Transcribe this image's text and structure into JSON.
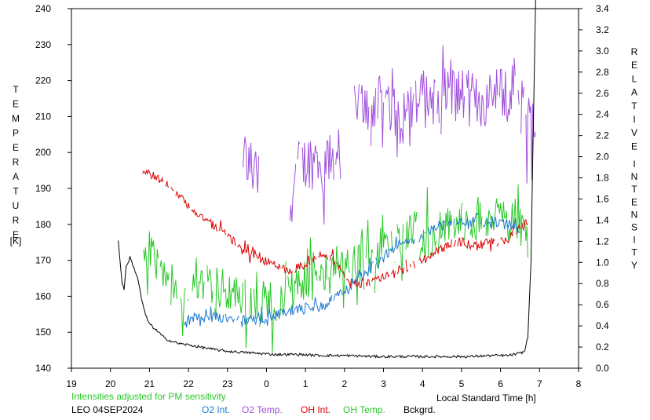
{
  "chart_data": {
    "type": "line",
    "x_axis": {
      "label": "Local Standard Time [h]",
      "ticks": [
        "19",
        "20",
        "21",
        "22",
        "23",
        "0",
        "1",
        "2",
        "3",
        "4",
        "5",
        "6",
        "7",
        "8"
      ],
      "range": [
        19,
        32
      ]
    },
    "y_left": {
      "label_letters": [
        "T",
        "E",
        "M",
        "P",
        "E",
        "R",
        "A",
        "T",
        "U",
        "R",
        "E"
      ],
      "unit": "[K]",
      "range": [
        140,
        240
      ],
      "ticks": [
        "140",
        "150",
        "160",
        "170",
        "180",
        "190",
        "200",
        "210",
        "220",
        "230",
        "240"
      ]
    },
    "y_right": {
      "label_letters_1": [
        "R",
        "E",
        "L",
        "A",
        "T",
        "I",
        "V",
        "E"
      ],
      "label_letters_2": [
        "I",
        "N",
        "T",
        "E",
        "N",
        "S",
        "I",
        "T",
        "Y"
      ],
      "range": [
        0.0,
        3.4
      ],
      "ticks": [
        "0.0",
        "0.2",
        "0.4",
        "0.6",
        "0.8",
        "1.0",
        "1.2",
        "1.4",
        "1.6",
        "1.8",
        "2.0",
        "2.2",
        "2.4",
        "2.6",
        "2.8",
        "3.0",
        "3.2",
        "3.4"
      ]
    },
    "note": "Intensities adjusted for PM sensitivity",
    "station_label": "LEO 04SEP2024",
    "legend": [
      {
        "name": "O2 Int.",
        "color": "#1e78d2"
      },
      {
        "name": "O2 Temp.",
        "color": "#a050dc"
      },
      {
        "name": "OH Int.",
        "color": "#dc0000"
      },
      {
        "name": "OH Temp.",
        "color": "#28c828"
      },
      {
        "name": "Bckgrd.",
        "color": "#000000"
      }
    ],
    "series": [
      {
        "key": "o2t",
        "axis": "left",
        "color": "#a050dc",
        "noise": 8,
        "segments": [
          [
            [
              23.4,
              199
            ],
            [
              23.6,
              196
            ],
            [
              23.75,
              194
            ],
            [
              23.8,
              196
            ]
          ],
          [
            [
              24.6,
              185
            ],
            [
              24.75,
              195
            ],
            [
              25.1,
              198
            ],
            [
              25.3,
              197
            ],
            [
              25.5,
              196
            ],
            [
              25.7,
              198
            ],
            [
              25.9,
              200
            ]
          ],
          [
            [
              26.2,
              212
            ],
            [
              26.6,
              213
            ],
            [
              27.0,
              214
            ],
            [
              27.4,
              213
            ],
            [
              27.8,
              214
            ],
            [
              28.2,
              215
            ],
            [
              28.6,
              217
            ],
            [
              29.0,
              216
            ],
            [
              29.4,
              214
            ],
            [
              29.8,
              215
            ],
            [
              30.0,
              217
            ],
            [
              30.4,
              215
            ],
            [
              30.6,
              212
            ],
            [
              30.8,
              208
            ],
            [
              30.9,
              205
            ]
          ]
        ]
      },
      {
        "key": "oht",
        "axis": "left",
        "color": "#28c828",
        "noise": 6,
        "segments": [
          [
            [
              20.8,
              172
            ],
            [
              21.0,
              173
            ],
            [
              21.2,
              170
            ],
            [
              21.4,
              164
            ],
            [
              21.6,
              162
            ],
            [
              21.8,
              159
            ],
            [
              22.0,
              160
            ],
            [
              22.2,
              163
            ],
            [
              22.4,
              164
            ],
            [
              22.6,
              163
            ],
            [
              22.8,
              162
            ],
            [
              23.0,
              162
            ],
            [
              23.2,
              161
            ],
            [
              23.4,
              160
            ],
            [
              23.6,
              157
            ],
            [
              23.8,
              157
            ],
            [
              24.0,
              160
            ],
            [
              24.2,
              158
            ],
            [
              24.4,
              161
            ],
            [
              24.6,
              162
            ],
            [
              24.8,
              161
            ],
            [
              25.0,
              164
            ],
            [
              25.2,
              165
            ],
            [
              25.4,
              164
            ],
            [
              25.6,
              167
            ],
            [
              25.8,
              168
            ],
            [
              26.0,
              168
            ],
            [
              26.2,
              168
            ],
            [
              26.4,
              170
            ],
            [
              26.6,
              172
            ],
            [
              26.8,
              173
            ],
            [
              27.0,
              174
            ],
            [
              27.2,
              173
            ],
            [
              27.4,
              175
            ],
            [
              27.6,
              177
            ],
            [
              27.8,
              178
            ],
            [
              28.0,
              178
            ],
            [
              28.2,
              176
            ],
            [
              28.4,
              178
            ],
            [
              28.6,
              179
            ],
            [
              28.8,
              180
            ],
            [
              29.0,
              181
            ],
            [
              29.2,
              180
            ],
            [
              29.4,
              182
            ],
            [
              29.6,
              181
            ],
            [
              29.8,
              183
            ],
            [
              30.0,
              182
            ],
            [
              30.2,
              184
            ],
            [
              30.4,
              181
            ],
            [
              30.6,
              179
            ],
            [
              30.7,
              177
            ]
          ]
        ]
      },
      {
        "key": "o2i",
        "axis": "right",
        "color": "#1e78d2",
        "noise": 0.05,
        "segments": [
          [
            [
              21.9,
              0.45
            ],
            [
              22.2,
              0.48
            ],
            [
              22.5,
              0.5
            ],
            [
              22.8,
              0.48
            ],
            [
              23.1,
              0.47
            ],
            [
              23.4,
              0.45
            ],
            [
              23.7,
              0.46
            ],
            [
              24.0,
              0.48
            ],
            [
              24.3,
              0.5
            ],
            [
              24.6,
              0.52
            ],
            [
              24.9,
              0.55
            ],
            [
              25.2,
              0.57
            ],
            [
              25.5,
              0.6
            ],
            [
              25.8,
              0.67
            ],
            [
              26.1,
              0.75
            ],
            [
              26.4,
              0.85
            ],
            [
              26.7,
              0.95
            ],
            [
              27.0,
              1.05
            ],
            [
              27.3,
              1.13
            ],
            [
              27.6,
              1.2
            ],
            [
              27.9,
              1.25
            ],
            [
              28.2,
              1.3
            ],
            [
              28.5,
              1.35
            ],
            [
              28.8,
              1.37
            ],
            [
              29.1,
              1.38
            ],
            [
              29.4,
              1.38
            ],
            [
              29.7,
              1.4
            ],
            [
              30.0,
              1.37
            ],
            [
              30.3,
              1.35
            ],
            [
              30.6,
              1.3
            ]
          ]
        ]
      },
      {
        "key": "ohi",
        "axis": "right",
        "color": "#dc0000",
        "noise": 0.04,
        "segments": [
          [
            [
              20.8,
              1.88
            ],
            [
              21.2,
              1.8
            ],
            [
              21.5,
              1.72
            ],
            [
              21.8,
              1.62
            ],
            [
              22.1,
              1.5
            ],
            [
              22.4,
              1.42
            ],
            [
              22.7,
              1.33
            ],
            [
              23.0,
              1.25
            ],
            [
              23.3,
              1.16
            ],
            [
              23.6,
              1.08
            ],
            [
              23.9,
              1.02
            ],
            [
              24.2,
              0.98
            ],
            [
              24.5,
              0.92
            ],
            [
              24.8,
              0.95
            ],
            [
              25.1,
              1.0
            ],
            [
              25.4,
              1.05
            ],
            [
              25.7,
              1.05
            ],
            [
              26.0,
              0.88
            ],
            [
              26.3,
              0.8
            ],
            [
              26.6,
              0.8
            ],
            [
              26.9,
              0.85
            ],
            [
              27.2,
              0.88
            ],
            [
              27.5,
              0.93
            ],
            [
              27.8,
              0.98
            ],
            [
              28.1,
              1.05
            ],
            [
              28.4,
              1.1
            ],
            [
              28.7,
              1.18
            ],
            [
              29.0,
              1.2
            ],
            [
              29.3,
              1.15
            ],
            [
              29.6,
              1.2
            ],
            [
              29.9,
              1.18
            ],
            [
              30.2,
              1.22
            ],
            [
              30.4,
              1.3
            ],
            [
              30.6,
              1.35
            ],
            [
              30.7,
              1.4
            ]
          ]
        ]
      },
      {
        "key": "bck",
        "axis": "right",
        "color": "#000000",
        "noise": 0.012,
        "segments": [
          [
            [
              20.2,
              1.2
            ],
            [
              20.3,
              0.8
            ],
            [
              20.35,
              0.75
            ],
            [
              20.4,
              0.95
            ],
            [
              20.5,
              1.05
            ],
            [
              20.6,
              0.95
            ],
            [
              20.7,
              0.85
            ],
            [
              20.8,
              0.65
            ],
            [
              20.9,
              0.5
            ],
            [
              21.0,
              0.42
            ],
            [
              21.2,
              0.35
            ],
            [
              21.4,
              0.28
            ],
            [
              21.6,
              0.25
            ],
            [
              21.8,
              0.23
            ],
            [
              22.0,
              0.22
            ],
            [
              22.3,
              0.2
            ],
            [
              22.6,
              0.18
            ],
            [
              23.0,
              0.16
            ],
            [
              23.4,
              0.15
            ],
            [
              23.8,
              0.14
            ],
            [
              24.2,
              0.13
            ],
            [
              24.8,
              0.13
            ],
            [
              25.4,
              0.12
            ],
            [
              26.0,
              0.12
            ],
            [
              26.8,
              0.11
            ],
            [
              27.6,
              0.11
            ],
            [
              28.4,
              0.11
            ],
            [
              29.2,
              0.11
            ],
            [
              29.8,
              0.12
            ],
            [
              30.2,
              0.12
            ],
            [
              30.5,
              0.14
            ],
            [
              30.62,
              0.16
            ],
            [
              30.7,
              0.3
            ],
            [
              30.78,
              1.0
            ],
            [
              30.85,
              2.5
            ],
            [
              30.9,
              3.5
            ]
          ]
        ]
      }
    ]
  }
}
